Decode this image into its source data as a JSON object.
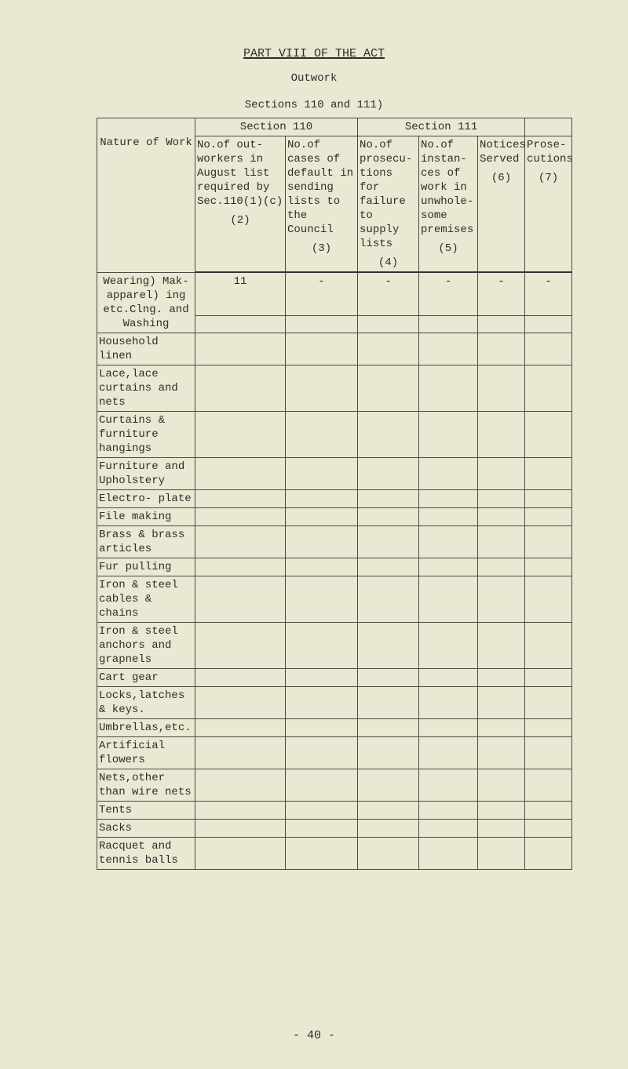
{
  "page": {
    "title": "PART VIII OF THE ACT",
    "subtitle": "Outwork",
    "sections": "Sections 110 and 111)",
    "page_number": "- 40 -"
  },
  "table": {
    "group_headers": {
      "section110": "Section 110",
      "section111": "Section 111"
    },
    "columns": [
      {
        "label": "Nature of Work",
        "number": ""
      },
      {
        "label": "No.of out- workers in August list required by Sec.110(1)(c)",
        "number": "(2)"
      },
      {
        "label": "No.of cases of default in sending lists to the Council",
        "number": "(3)"
      },
      {
        "label": "No.of prosecu- tions for failure to supply lists",
        "number": "(4)"
      },
      {
        "label": "No.of instan- ces of work in unwhole- some premises",
        "number": "(5)"
      },
      {
        "label": "Notices Served",
        "number": "(6)"
      },
      {
        "label": "Prose- cutions",
        "number": "(7)"
      }
    ],
    "rows": [
      {
        "nature": "Wearing) Mak- apparel) ing etc.Clng. and Washing",
        "values": [
          "11",
          "-",
          "-",
          "-",
          "-",
          "-"
        ]
      },
      {
        "nature": "Household linen",
        "values": [
          "",
          "",
          "",
          "",
          "",
          ""
        ]
      },
      {
        "nature": "Lace,lace curtains and nets",
        "values": [
          "",
          "",
          "",
          "",
          "",
          ""
        ]
      },
      {
        "nature": "Curtains & furniture hangings",
        "values": [
          "",
          "",
          "",
          "",
          "",
          ""
        ]
      },
      {
        "nature": "Furniture and Upholstery",
        "values": [
          "",
          "",
          "",
          "",
          "",
          ""
        ]
      },
      {
        "nature": "Electro- plate",
        "values": [
          "",
          "",
          "",
          "",
          "",
          ""
        ]
      },
      {
        "nature": "File making",
        "values": [
          "",
          "",
          "",
          "",
          "",
          ""
        ]
      },
      {
        "nature": "Brass & brass articles",
        "values": [
          "",
          "",
          "",
          "",
          "",
          ""
        ]
      },
      {
        "nature": "Fur pulling",
        "values": [
          "",
          "",
          "",
          "",
          "",
          ""
        ]
      },
      {
        "nature": "Iron & steel cables & chains",
        "values": [
          "",
          "",
          "",
          "",
          "",
          ""
        ]
      },
      {
        "nature": "Iron & steel anchors and grapnels",
        "values": [
          "",
          "",
          "",
          "",
          "",
          ""
        ]
      },
      {
        "nature": "Cart gear",
        "values": [
          "",
          "",
          "",
          "",
          "",
          ""
        ]
      },
      {
        "nature": "Locks,latches & keys.",
        "values": [
          "",
          "",
          "",
          "",
          "",
          ""
        ]
      },
      {
        "nature": "Umbrellas,etc.",
        "values": [
          "",
          "",
          "",
          "",
          "",
          ""
        ]
      },
      {
        "nature": "Artificial flowers",
        "values": [
          "",
          "",
          "",
          "",
          "",
          ""
        ]
      },
      {
        "nature": "Nets,other than wire nets",
        "values": [
          "",
          "",
          "",
          "",
          "",
          ""
        ]
      },
      {
        "nature": "Tents",
        "values": [
          "",
          "",
          "",
          "",
          "",
          ""
        ]
      },
      {
        "nature": "Sacks",
        "values": [
          "",
          "",
          "",
          "",
          "",
          ""
        ]
      },
      {
        "nature": "Racquet and tennis balls",
        "values": [
          "",
          "",
          "",
          "",
          "",
          ""
        ]
      }
    ]
  }
}
